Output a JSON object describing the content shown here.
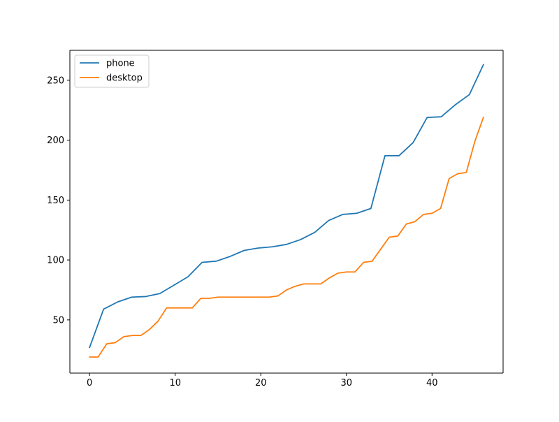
{
  "chart_data": {
    "type": "line",
    "title": "",
    "xlabel": "",
    "ylabel": "",
    "xlim": [
      -2.3,
      48.3
    ],
    "ylim": [
      5.6,
      275
    ],
    "x_ticks": [
      0,
      10,
      20,
      30,
      40
    ],
    "y_ticks": [
      50,
      100,
      150,
      200,
      250
    ],
    "grid": false,
    "legend": {
      "placement": "top-left"
    },
    "series": [
      {
        "name": "phone",
        "color": "#1f77b4",
        "x": [
          0,
          1.64,
          3.29,
          4.93,
          6.57,
          8.21,
          9.86,
          11.5,
          13.14,
          14.79,
          16.43,
          18.07,
          19.71,
          21.36,
          23,
          24.64,
          26.29,
          27.93,
          29.57,
          31.21,
          32.86,
          34.5,
          36.14,
          37.79,
          39.43,
          41.07,
          42.71,
          44.36,
          46
        ],
        "y": [
          27,
          59,
          65,
          69,
          69.5,
          72,
          79,
          86,
          98,
          99,
          103,
          108,
          110,
          111,
          113,
          117,
          123,
          133,
          138,
          139,
          143,
          187,
          187,
          198,
          219,
          219.5,
          229.5,
          238,
          263
        ]
      },
      {
        "name": "desktop",
        "color": "#ff7f0e",
        "x": [
          0,
          1,
          2,
          3,
          4,
          5,
          6,
          7,
          8,
          9,
          10,
          11,
          12,
          13,
          14,
          15,
          16,
          17,
          18,
          19,
          20,
          21,
          22,
          23,
          24,
          25,
          26,
          27,
          28,
          29,
          30,
          31,
          32,
          33,
          34,
          35,
          36,
          37,
          38,
          39,
          40,
          41,
          42,
          43,
          44,
          45,
          46
        ],
        "y": [
          19,
          19,
          30,
          31,
          36,
          37,
          37,
          42,
          49,
          60,
          60,
          60,
          60,
          68,
          68,
          69,
          69,
          69,
          69,
          69,
          69,
          69,
          70,
          75,
          78,
          80,
          80,
          80,
          85,
          89,
          90,
          90,
          98,
          99,
          109,
          119,
          120,
          130,
          132,
          138,
          139,
          143,
          168,
          172,
          173,
          199,
          219
        ]
      }
    ]
  }
}
